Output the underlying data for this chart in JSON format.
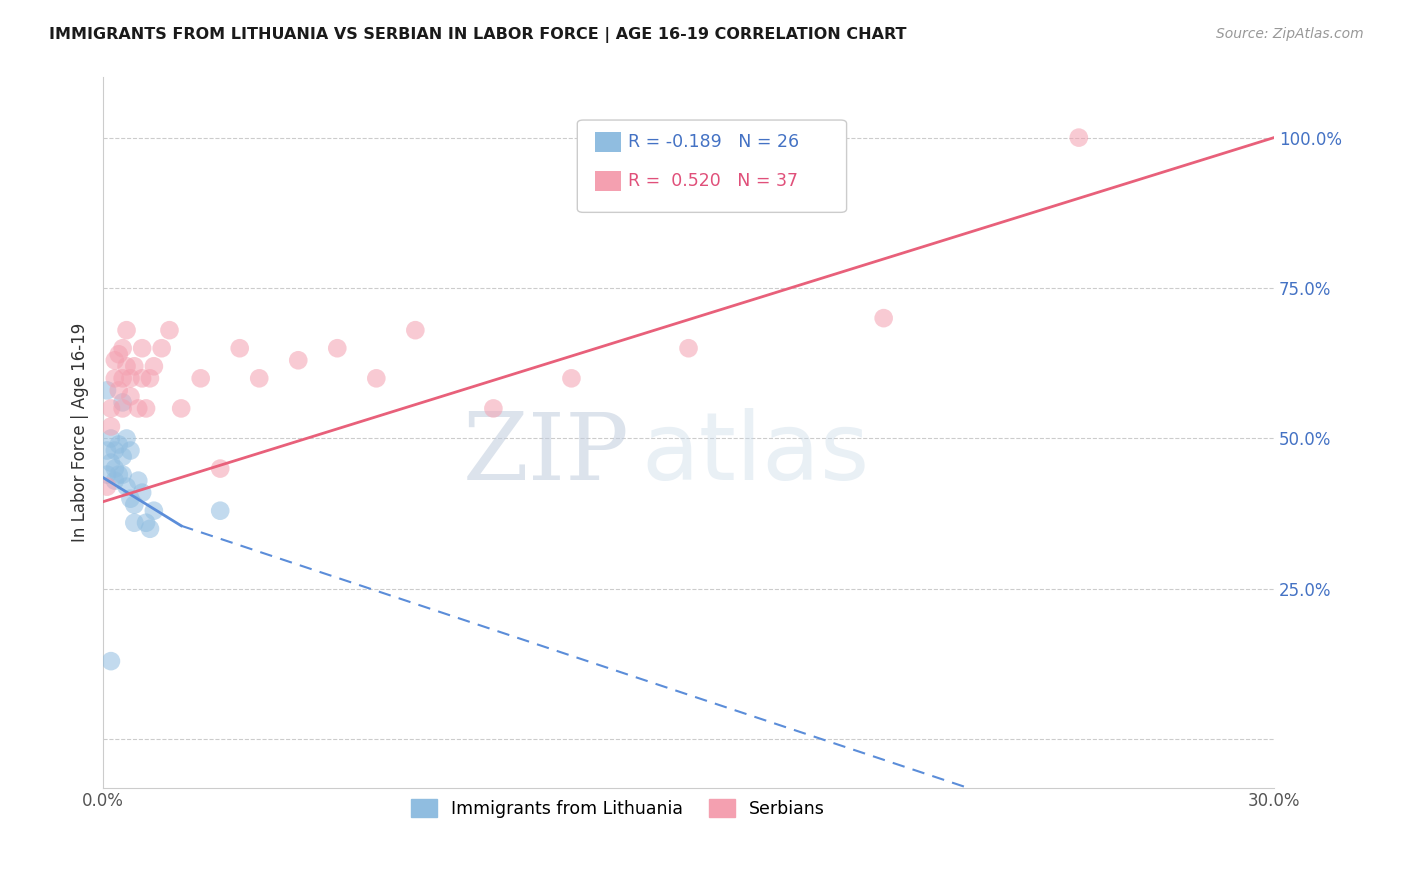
{
  "title": "IMMIGRANTS FROM LITHUANIA VS SERBIAN IN LABOR FORCE | AGE 16-19 CORRELATION CHART",
  "source": "Source: ZipAtlas.com",
  "ylabel": "In Labor Force | Age 16-19",
  "xlim": [
    0.0,
    0.3
  ],
  "ylim": [
    -0.08,
    1.1
  ],
  "color_blue": "#90bde0",
  "color_pink": "#f4a0b0",
  "color_blue_line": "#5b8dd9",
  "color_pink_line": "#e8607a",
  "color_axis_labels": "#4472c4",
  "background_color": "#ffffff",
  "watermark_zip": "ZIP",
  "watermark_atlas": "atlas",
  "lith_x": [
    0.001,
    0.001,
    0.002,
    0.002,
    0.002,
    0.003,
    0.003,
    0.003,
    0.004,
    0.004,
    0.005,
    0.005,
    0.005,
    0.006,
    0.006,
    0.007,
    0.007,
    0.008,
    0.008,
    0.009,
    0.01,
    0.011,
    0.012,
    0.013,
    0.03,
    0.001
  ],
  "lith_y": [
    0.44,
    0.48,
    0.46,
    0.5,
    0.13,
    0.48,
    0.43,
    0.45,
    0.49,
    0.44,
    0.47,
    0.44,
    0.56,
    0.5,
    0.42,
    0.48,
    0.4,
    0.36,
    0.39,
    0.43,
    0.41,
    0.36,
    0.35,
    0.38,
    0.38,
    0.58
  ],
  "serb_x": [
    0.001,
    0.002,
    0.002,
    0.003,
    0.003,
    0.004,
    0.004,
    0.005,
    0.005,
    0.005,
    0.006,
    0.006,
    0.007,
    0.007,
    0.008,
    0.009,
    0.01,
    0.01,
    0.011,
    0.012,
    0.013,
    0.015,
    0.017,
    0.02,
    0.025,
    0.03,
    0.035,
    0.04,
    0.05,
    0.06,
    0.07,
    0.08,
    0.1,
    0.12,
    0.15,
    0.2,
    0.25
  ],
  "serb_y": [
    0.42,
    0.55,
    0.52,
    0.6,
    0.63,
    0.58,
    0.64,
    0.6,
    0.55,
    0.65,
    0.62,
    0.68,
    0.57,
    0.6,
    0.62,
    0.55,
    0.6,
    0.65,
    0.55,
    0.6,
    0.62,
    0.65,
    0.68,
    0.55,
    0.6,
    0.45,
    0.65,
    0.6,
    0.63,
    0.65,
    0.6,
    0.68,
    0.55,
    0.6,
    0.65,
    0.7,
    1.0
  ]
}
